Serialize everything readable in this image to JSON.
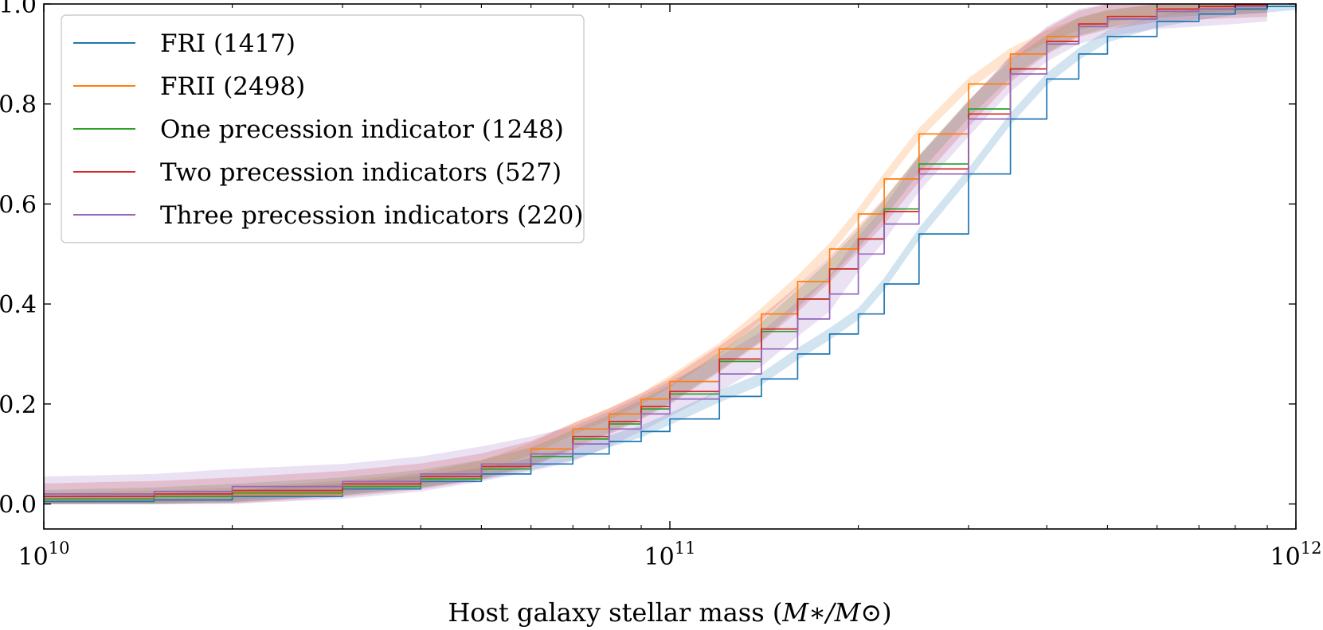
{
  "chart_data": {
    "type": "line",
    "title": "",
    "xlabel": "Host galaxy stellar mass (",
    "xlabel_math": "M∗/M⊙",
    "xlabel_close": ")",
    "ylabel": "",
    "xscale": "log",
    "xlim": [
      10000000000,
      1000000000000
    ],
    "ylim": [
      -0.05,
      1.0
    ],
    "x_ticks": [
      {
        "value": 10000000000,
        "base": "10",
        "exp": "10"
      },
      {
        "value": 100000000000,
        "base": "10",
        "exp": "11"
      },
      {
        "value": 1000000000000,
        "base": "10",
        "exp": "12"
      }
    ],
    "y_ticks": [
      {
        "value": 0.0,
        "label": "0.0"
      },
      {
        "value": 0.2,
        "label": "0.2"
      },
      {
        "value": 0.4,
        "label": "0.4"
      },
      {
        "value": 0.6,
        "label": "0.6"
      },
      {
        "value": 0.8,
        "label": "0.8"
      },
      {
        "value": 1.0,
        "label": "1.0"
      }
    ],
    "legend_position": "top-left",
    "series": [
      {
        "name": "FRI (1417)",
        "color": "#1f77b4",
        "band": 0.012,
        "x": [
          10000000000.0,
          15000000000.0,
          20000000000.0,
          30000000000.0,
          40000000000.0,
          50000000000.0,
          60000000000.0,
          70000000000.0,
          80000000000.0,
          90000000000.0,
          100000000000.0,
          120000000000.0,
          140000000000.0,
          160000000000.0,
          180000000000.0,
          200000000000.0,
          220000000000.0,
          250000000000.0,
          300000000000.0,
          350000000000.0,
          400000000000.0,
          450000000000.0,
          500000000000.0,
          600000000000.0,
          700000000000.0,
          800000000000.0,
          900000000000.0,
          1000000000000.0
        ],
        "y": [
          0.005,
          0.008,
          0.015,
          0.03,
          0.045,
          0.06,
          0.08,
          0.1,
          0.125,
          0.145,
          0.17,
          0.215,
          0.25,
          0.3,
          0.34,
          0.38,
          0.44,
          0.54,
          0.66,
          0.77,
          0.85,
          0.9,
          0.935,
          0.965,
          0.98,
          0.99,
          0.995,
          1.0
        ]
      },
      {
        "name": "FRII (2498)",
        "color": "#ff7f0e",
        "band": 0.012,
        "x": [
          10000000000.0,
          15000000000.0,
          20000000000.0,
          30000000000.0,
          40000000000.0,
          50000000000.0,
          60000000000.0,
          70000000000.0,
          80000000000.0,
          90000000000.0,
          100000000000.0,
          120000000000.0,
          140000000000.0,
          160000000000.0,
          180000000000.0,
          200000000000.0,
          220000000000.0,
          250000000000.0,
          300000000000.0,
          350000000000.0,
          400000000000.0,
          450000000000.0,
          500000000000.0,
          600000000000.0,
          700000000000.0,
          800000000000.0,
          900000000000.0
        ],
        "y": [
          0.01,
          0.015,
          0.02,
          0.035,
          0.05,
          0.075,
          0.11,
          0.15,
          0.18,
          0.21,
          0.245,
          0.31,
          0.38,
          0.445,
          0.51,
          0.58,
          0.65,
          0.74,
          0.84,
          0.9,
          0.935,
          0.96,
          0.975,
          0.99,
          0.995,
          0.998,
          1.0
        ]
      },
      {
        "name": "One precession indicator (1248)",
        "color": "#2ca02c",
        "band": 0.018,
        "x": [
          10000000000.0,
          15000000000.0,
          20000000000.0,
          30000000000.0,
          40000000000.0,
          50000000000.0,
          60000000000.0,
          70000000000.0,
          80000000000.0,
          90000000000.0,
          100000000000.0,
          120000000000.0,
          140000000000.0,
          160000000000.0,
          180000000000.0,
          200000000000.0,
          220000000000.0,
          250000000000.0,
          300000000000.0,
          350000000000.0,
          400000000000.0,
          450000000000.0,
          500000000000.0,
          600000000000.0,
          700000000000.0,
          800000000000.0,
          900000000000.0
        ],
        "y": [
          0.01,
          0.015,
          0.022,
          0.035,
          0.05,
          0.07,
          0.095,
          0.13,
          0.16,
          0.19,
          0.22,
          0.285,
          0.345,
          0.41,
          0.47,
          0.53,
          0.59,
          0.68,
          0.79,
          0.87,
          0.92,
          0.955,
          0.97,
          0.99,
          0.995,
          0.998,
          1.0
        ]
      },
      {
        "name": "Two precession indicators (527)",
        "color": "#d62728",
        "band": 0.026,
        "x": [
          10000000000.0,
          15000000000.0,
          20000000000.0,
          30000000000.0,
          40000000000.0,
          50000000000.0,
          60000000000.0,
          70000000000.0,
          80000000000.0,
          90000000000.0,
          100000000000.0,
          120000000000.0,
          140000000000.0,
          160000000000.0,
          180000000000.0,
          200000000000.0,
          220000000000.0,
          250000000000.0,
          300000000000.0,
          350000000000.0,
          400000000000.0,
          450000000000.0,
          500000000000.0,
          600000000000.0,
          700000000000.0,
          800000000000.0,
          900000000000.0
        ],
        "y": [
          0.015,
          0.02,
          0.027,
          0.04,
          0.055,
          0.075,
          0.1,
          0.135,
          0.165,
          0.195,
          0.225,
          0.29,
          0.35,
          0.41,
          0.47,
          0.53,
          0.585,
          0.67,
          0.78,
          0.87,
          0.925,
          0.96,
          0.975,
          0.99,
          0.995,
          0.998,
          1.0
        ]
      },
      {
        "name": "Three precession indicators (220)",
        "color": "#9467bd",
        "band": 0.035,
        "x": [
          10000000000.0,
          15000000000.0,
          20000000000.0,
          30000000000.0,
          40000000000.0,
          50000000000.0,
          60000000000.0,
          70000000000.0,
          80000000000.0,
          90000000000.0,
          100000000000.0,
          120000000000.0,
          140000000000.0,
          160000000000.0,
          180000000000.0,
          200000000000.0,
          220000000000.0,
          250000000000.0,
          300000000000.0,
          350000000000.0,
          400000000000.0,
          450000000000.0,
          500000000000.0,
          600000000000.0,
          700000000000.0,
          800000000000.0,
          900000000000.0
        ],
        "y": [
          0.02,
          0.025,
          0.035,
          0.045,
          0.06,
          0.08,
          0.1,
          0.12,
          0.15,
          0.18,
          0.21,
          0.26,
          0.31,
          0.37,
          0.42,
          0.5,
          0.56,
          0.66,
          0.77,
          0.86,
          0.92,
          0.955,
          0.97,
          0.985,
          0.99,
          0.995,
          1.0
        ]
      }
    ]
  }
}
